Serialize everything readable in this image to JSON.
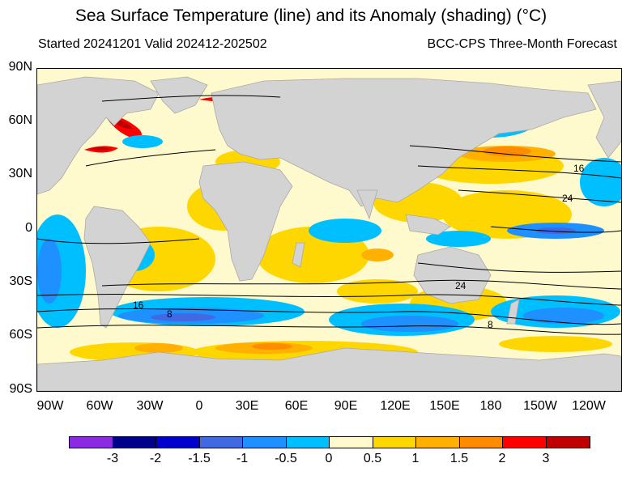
{
  "title": "Sea Surface Temperature (line) and its Anomaly (shading) (°C)",
  "subtitle_left": "Started 20241201  Valid 202412-202502",
  "subtitle_right": "BCC-CPS Three-Month Forecast",
  "lat_labels": [
    "90N",
    "60N",
    "30N",
    "0",
    "30S",
    "60S",
    "90S"
  ],
  "lon_labels": [
    "90W",
    "60W",
    "30W",
    "0",
    "30E",
    "60E",
    "90E",
    "120E",
    "150E",
    "180",
    "150W",
    "120W"
  ],
  "contour_labels": [
    "16",
    "24",
    "24",
    "16",
    "8",
    "8"
  ],
  "colorbar": {
    "colors": [
      "#8a2be2",
      "#00008b",
      "#0000cd",
      "#4169e1",
      "#1e90ff",
      "#00bfff",
      "#fffacd",
      "#ffd700",
      "#ffb000",
      "#ff8c00",
      "#ff0000",
      "#c00000"
    ],
    "labels": [
      "-3",
      "-2",
      "-1.5",
      "-1",
      "-0.5",
      "0",
      "0.5",
      "1",
      "1.5",
      "2",
      "3"
    ]
  }
}
